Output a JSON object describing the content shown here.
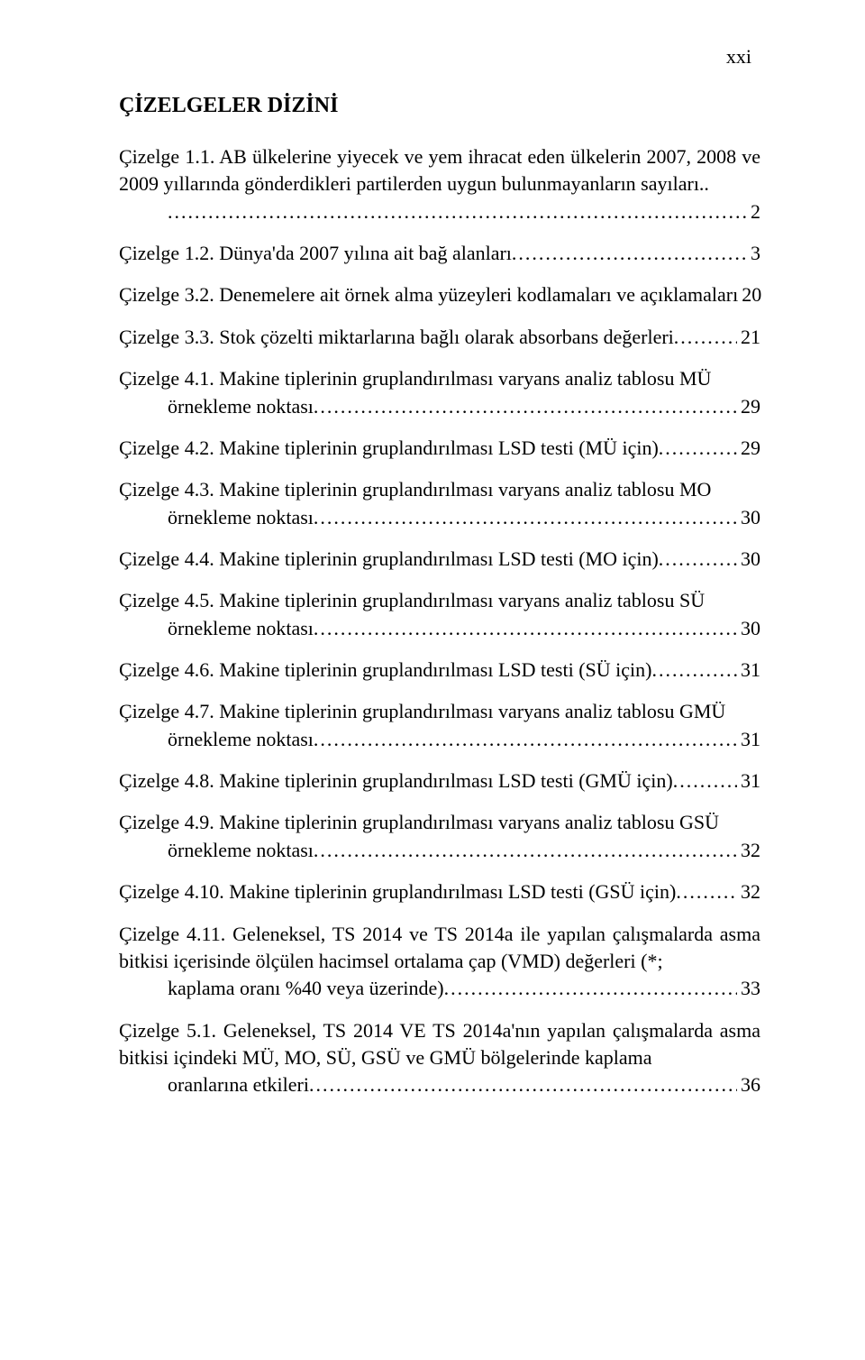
{
  "page_number_roman": "xxi",
  "heading": "ÇİZELGELER DİZİNİ",
  "font": {
    "family": "Times New Roman",
    "title_size_pt": 24,
    "body_size_pt": 22,
    "color": "#000000",
    "background": "#ffffff"
  },
  "entries": [
    {
      "label": "Çizelge 1.1.",
      "first": "AB ülkelerine yiyecek ve yem ihracat eden ülkelerin 2007, 2008 ve 2009 yıllarında gönderdikleri partilerden uygun bulunmayanların sayıları..",
      "last": "",
      "page": "2",
      "multiline": true,
      "indent_continuation": true
    },
    {
      "label": "Çizelge 1.2.",
      "first": "",
      "last": "Dünya'da 2007 yılına ait bağ alanları",
      "page": "3",
      "multiline": false
    },
    {
      "label": "Çizelge 3.2.",
      "first": "",
      "last": "Denemelere ait örnek alma yüzeyleri kodlamaları ve açıklamaları",
      "page": "20",
      "multiline": false
    },
    {
      "label": "Çizelge 3.3.",
      "first": "",
      "last": "Stok çözelti miktarlarına bağlı olarak absorbans değerleri",
      "page": "21",
      "multiline": false
    },
    {
      "label": "Çizelge 4.1.",
      "first": "Makine tiplerinin gruplandırılması varyans analiz tablosu MÜ",
      "last": "örnekleme noktası",
      "page": "29",
      "multiline": true,
      "indent_continuation": true
    },
    {
      "label": "Çizelge 4.2.",
      "first": "",
      "last": "Makine tiplerinin gruplandırılması LSD testi (MÜ için)",
      "page": "29",
      "multiline": false
    },
    {
      "label": "Çizelge 4.3.",
      "first": "Makine tiplerinin gruplandırılması varyans analiz tablosu MO",
      "last": "örnekleme noktası",
      "page": "30",
      "multiline": true,
      "indent_continuation": true
    },
    {
      "label": "Çizelge 4.4.",
      "first": "",
      "last": "Makine tiplerinin gruplandırılması LSD testi (MO için)",
      "page": "30",
      "multiline": false
    },
    {
      "label": "Çizelge 4.5.",
      "first": "Makine tiplerinin gruplandırılması varyans analiz tablosu SÜ",
      "last": "örnekleme noktası",
      "page": "30",
      "multiline": true,
      "indent_continuation": true
    },
    {
      "label": "Çizelge 4.6.",
      "first": "",
      "last": "Makine tiplerinin gruplandırılması LSD testi (SÜ için)",
      "page": "31",
      "multiline": false
    },
    {
      "label": "Çizelge 4.7.",
      "first": "Makine tiplerinin gruplandırılması varyans analiz tablosu GMÜ",
      "last": "örnekleme noktası",
      "page": "31",
      "multiline": true,
      "indent_continuation": true
    },
    {
      "label": "Çizelge 4.8.",
      "first": "",
      "last": "Makine tiplerinin gruplandırılması LSD testi (GMÜ için)",
      "page": "31",
      "multiline": false
    },
    {
      "label": "Çizelge 4.9.",
      "first": "Makine tiplerinin gruplandırılması varyans analiz tablosu GSÜ",
      "last": "örnekleme noktası",
      "page": "32",
      "multiline": true,
      "indent_continuation": true
    },
    {
      "label": "Çizelge 4.10.",
      "first": "",
      "last": "Makine tiplerinin gruplandırılması LSD testi (GSÜ için)",
      "page": "32",
      "multiline": false
    },
    {
      "label": "Çizelge 4.11.",
      "first": "Geleneksel, TS 2014 ve TS 2014a ile yapılan çalışmalarda asma bitkisi içerisinde ölçülen hacimsel ortalama çap (VMD) değerleri (*;",
      "last": "kaplama oranı %40 veya üzerinde)",
      "page": "33",
      "multiline": true,
      "indent_continuation": true
    },
    {
      "label": "Çizelge 5.1.",
      "first": "Geleneksel, TS 2014 VE TS 2014a'nın yapılan çalışmalarda asma bitkisi içindeki MÜ, MO, SÜ, GSÜ ve GMÜ bölgelerinde kaplama",
      "last": "oranlarına etkileri",
      "page": "36",
      "multiline": true,
      "indent_continuation": true
    }
  ]
}
